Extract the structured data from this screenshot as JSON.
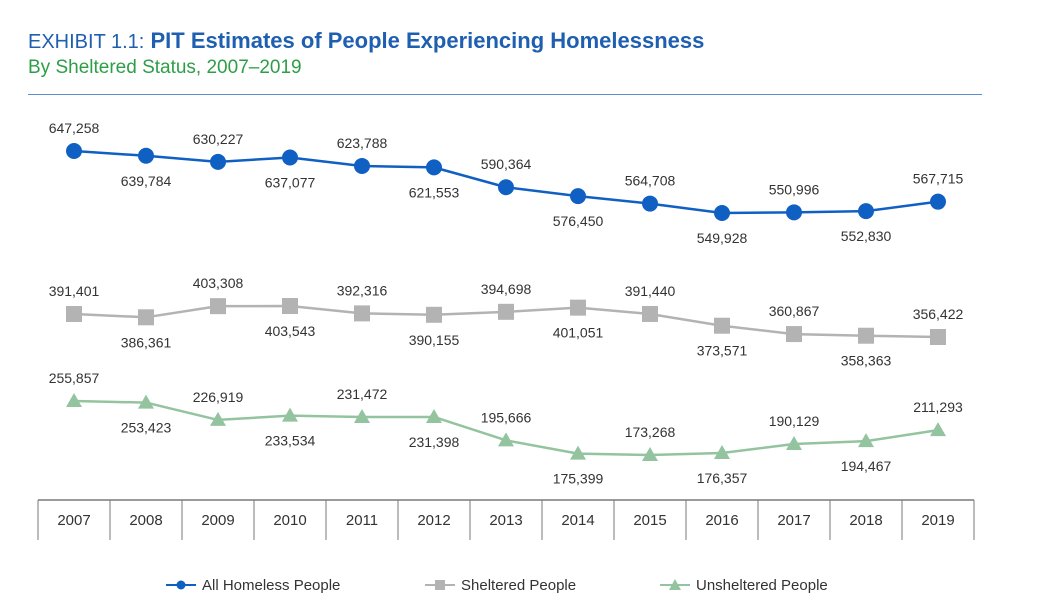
{
  "header": {
    "exhibit": "EXHIBIT 1.1:",
    "title": "PIT Estimates of People Experiencing Homelessness",
    "subtitle": "By Sheltered Status, 2007–2019"
  },
  "colors": {
    "title": "#1f5fb0",
    "subtitle": "#2e9e46",
    "all": "#1060c4",
    "sheltered": "#b3b3b3",
    "unsheltered": "#94c49f"
  },
  "chart_data": {
    "type": "line",
    "title": "PIT Estimates of People Experiencing Homelessness",
    "subtitle": "By Sheltered Status, 2007–2019",
    "categories": [
      "2007",
      "2008",
      "2009",
      "2010",
      "2011",
      "2012",
      "2013",
      "2014",
      "2015",
      "2016",
      "2017",
      "2018",
      "2019"
    ],
    "series": [
      {
        "name": "All Homeless People",
        "marker": "circle",
        "values": [
          647258,
          639784,
          630227,
          637077,
          623788,
          621553,
          590364,
          576450,
          564708,
          549928,
          550996,
          552830,
          567715
        ],
        "labels": [
          "647,258",
          "639,784",
          "630,227",
          "637,077",
          "623,788",
          "621,553",
          "590,364",
          "576,450",
          "564,708",
          "549,928",
          "550,996",
          "552,830",
          "567,715"
        ],
        "label_positions": [
          "above",
          "below",
          "above",
          "below",
          "above",
          "below",
          "above",
          "below",
          "above",
          "below",
          "above",
          "below",
          "above"
        ]
      },
      {
        "name": "Sheltered People",
        "marker": "square",
        "values": [
          391401,
          386361,
          403308,
          403543,
          392316,
          390155,
          394698,
          401051,
          391440,
          373571,
          360867,
          358363,
          356422
        ],
        "labels": [
          "391,401",
          "386,361",
          "403,308",
          "403,543",
          "392,316",
          "390,155",
          "394,698",
          "401,051",
          "391,440",
          "373,571",
          "360,867",
          "358,363",
          "356,422"
        ],
        "label_positions": [
          "above",
          "below",
          "above",
          "below",
          "above",
          "below",
          "above",
          "below",
          "above",
          "below",
          "above",
          "below",
          "above"
        ]
      },
      {
        "name": "Unsheltered People",
        "marker": "triangle",
        "values": [
          255857,
          253423,
          226919,
          233534,
          231472,
          231398,
          195666,
          175399,
          173268,
          176357,
          190129,
          194467,
          211293
        ],
        "labels": [
          "255,857",
          "253,423",
          "226,919",
          "233,534",
          "231,472",
          "231,398",
          "195,666",
          "175,399",
          "173,268",
          "176,357",
          "190,129",
          "194,467",
          "211,293"
        ],
        "label_positions": [
          "above",
          "below",
          "above",
          "below",
          "above",
          "below",
          "above",
          "below",
          "above",
          "below",
          "above",
          "below",
          "above"
        ]
      }
    ],
    "legend": {
      "position": "bottom",
      "items": [
        "All Homeless People",
        "Sheltered People",
        "Unsheltered People"
      ]
    },
    "xlabel": "",
    "ylabel": "",
    "grid": false
  }
}
